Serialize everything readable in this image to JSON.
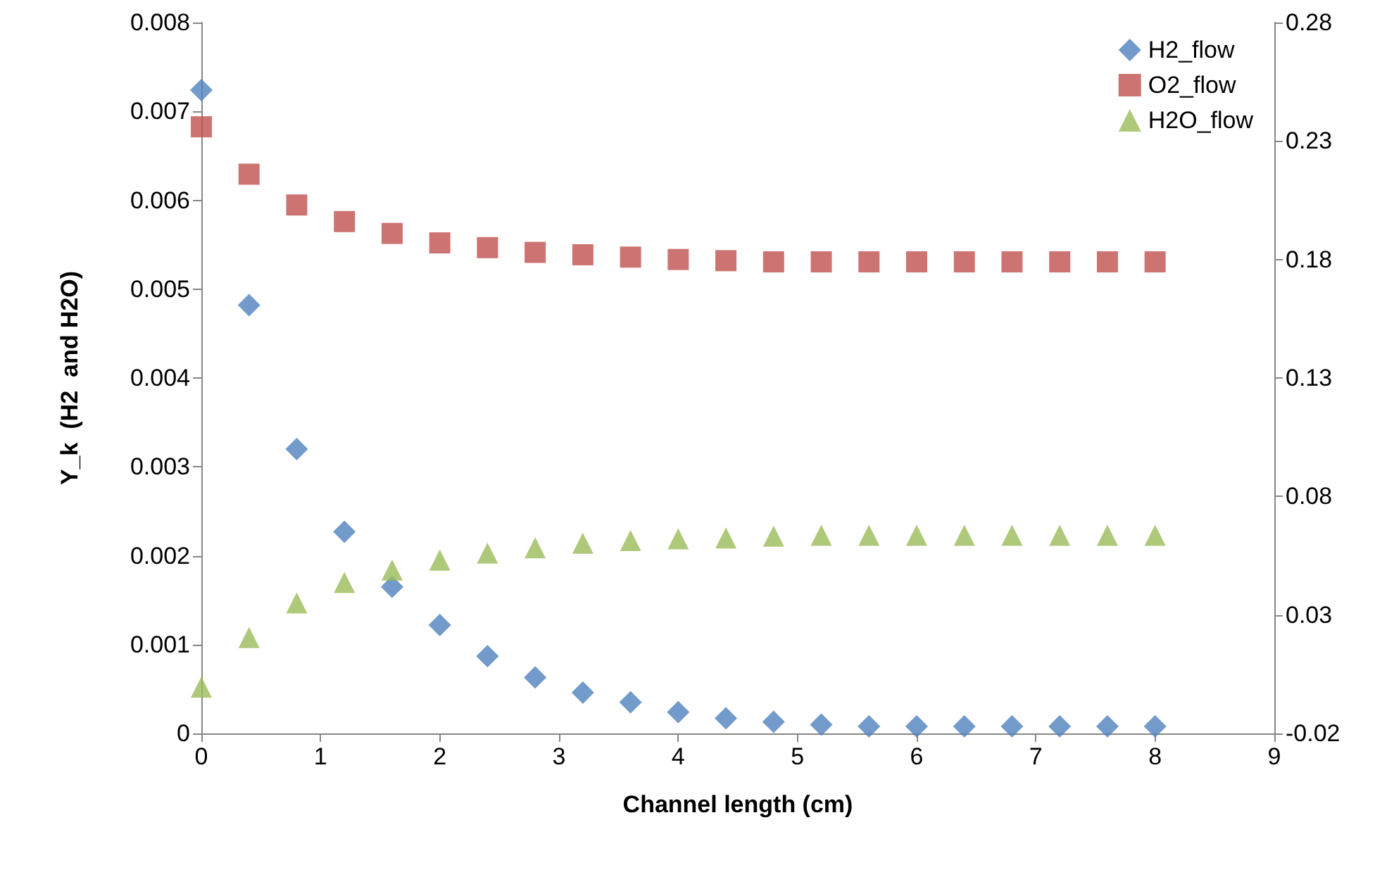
{
  "chart_data": {
    "type": "scatter",
    "xlabel": "Channel length (cm)",
    "ylabel": "Y_k  (H2  and H2O)",
    "x": [
      0,
      0.4,
      0.8,
      1.2,
      1.6,
      2.0,
      2.4,
      2.8,
      3.2,
      3.6,
      4.0,
      4.4,
      4.8,
      5.2,
      5.6,
      6.0,
      6.4,
      6.8,
      7.2,
      7.6,
      8.0
    ],
    "series": [
      {
        "name": "H2_flow",
        "color": "#4f81bd",
        "marker": "diamond",
        "values": [
          0.00724,
          0.00482,
          0.0032,
          0.00227,
          0.00165,
          0.00122,
          0.00087,
          0.00063,
          0.00046,
          0.00035,
          0.00024,
          0.00017,
          0.00013,
          0.0001,
          8e-05,
          8e-05,
          8e-05,
          8e-05,
          8e-05,
          8e-05,
          8e-05
        ]
      },
      {
        "name": "O2_flow",
        "color": "#c0504d",
        "marker": "square",
        "axis": "y2",
        "values": [
          0.236,
          0.216,
          0.203,
          0.196,
          0.191,
          0.187,
          0.185,
          0.183,
          0.182,
          0.181,
          0.18,
          0.1795,
          0.179,
          0.179,
          0.179,
          0.179,
          0.179,
          0.179,
          0.179,
          0.179,
          0.179
        ]
      },
      {
        "name": "H2O_flow",
        "color": "#9bbb59",
        "marker": "triangle",
        "values": [
          0.00052,
          0.00108,
          0.00147,
          0.0017,
          0.00184,
          0.00195,
          0.00203,
          0.00209,
          0.00214,
          0.00217,
          0.00219,
          0.0022,
          0.00222,
          0.00223,
          0.00223,
          0.00223,
          0.00223,
          0.00223,
          0.00223,
          0.00223,
          0.00223
        ]
      }
    ],
    "xlim": [
      0,
      9
    ],
    "xticks": [
      0,
      1,
      2,
      3,
      4,
      5,
      6,
      7,
      8,
      9
    ],
    "ylim": [
      0,
      0.008
    ],
    "yticks": [
      0,
      0.001,
      0.002,
      0.003,
      0.004,
      0.005,
      0.006,
      0.007,
      0.008
    ],
    "y2lim": [
      -0.02,
      0.28
    ],
    "y2ticks": [
      -0.02,
      0.03,
      0.08,
      0.13,
      0.18,
      0.23,
      0.28
    ],
    "grid": false,
    "legend": "top right"
  }
}
